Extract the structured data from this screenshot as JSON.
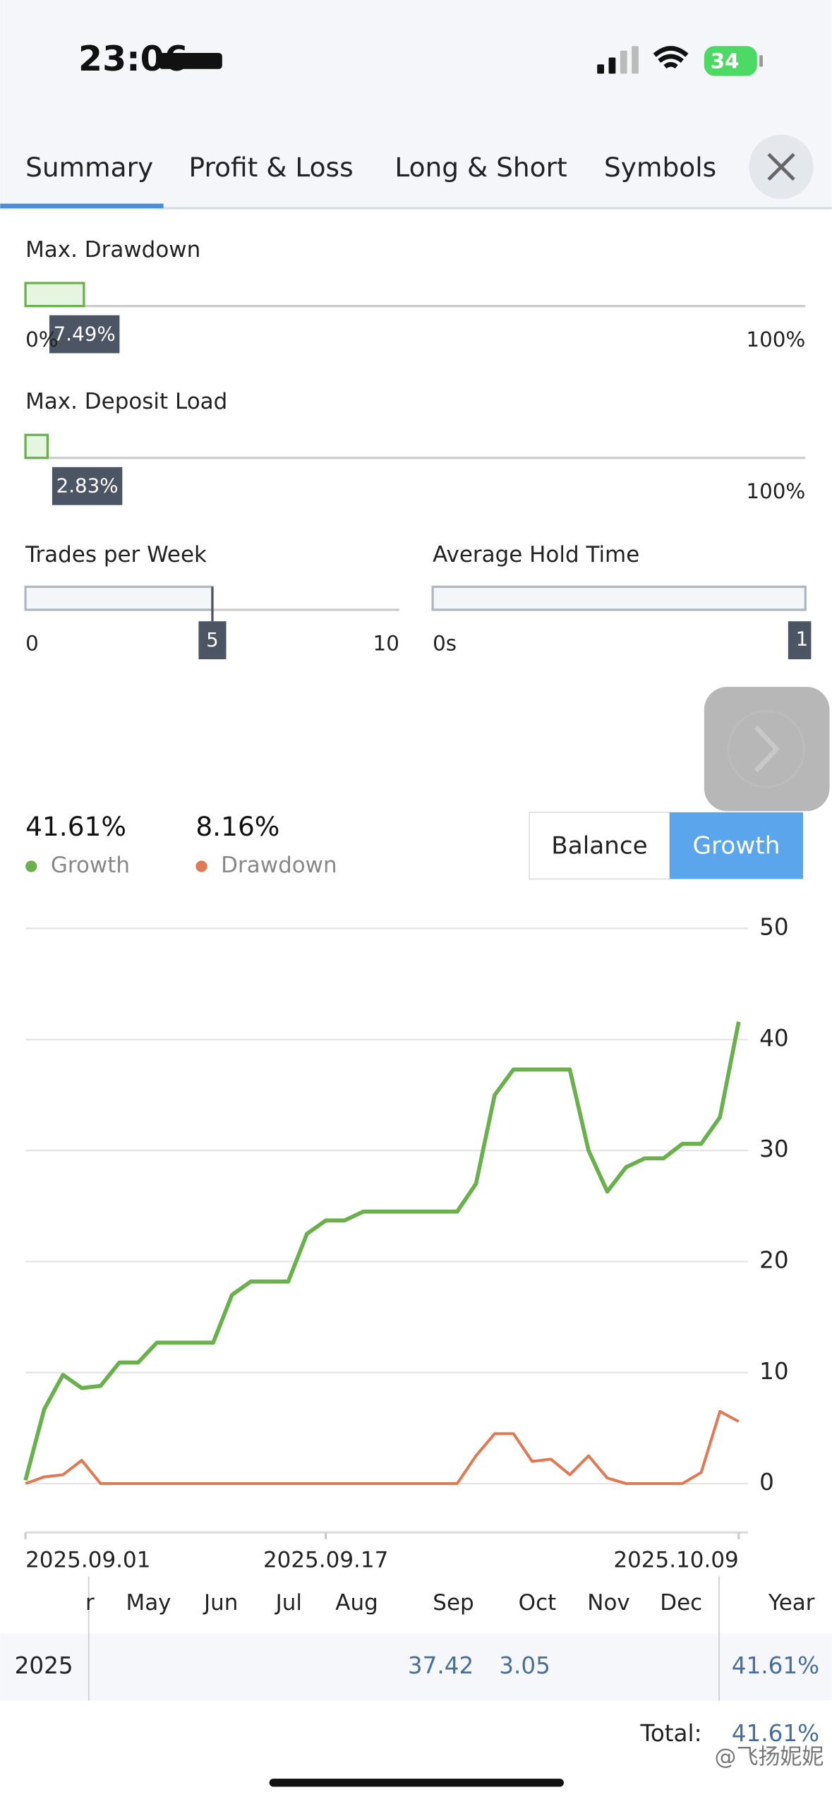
{
  "status_bar": {
    "time": "23:06",
    "battery": "34"
  },
  "tabs": [
    "Summary",
    "Profit & Loss",
    "Long & Short",
    "Symbols"
  ],
  "sliders": [
    {
      "label": "Max. Drawdown",
      "value": 7.49,
      "value_label": "7.49%",
      "min": {
        "value": 0,
        "label": "0%"
      },
      "max": {
        "value": 100,
        "label": "100%"
      }
    },
    {
      "label": "Max. Deposit Load",
      "value": 2.83,
      "value_label": "2.83%",
      "max": {
        "value": 100,
        "label": "100%"
      }
    },
    {
      "label": "Trades per Week",
      "value": 5,
      "min": 0,
      "max": 10
    },
    {
      "label": "Average Hold Time",
      "min_label": "0s",
      "tooltip": "1"
    }
  ],
  "toggle": [
    "Balance",
    "Growth"
  ],
  "chart_data": {
    "type": "line",
    "legend_values": [
      "41.61%",
      "8.16%"
    ],
    "x": [
      0,
      1,
      2,
      3,
      4,
      5,
      6,
      7,
      8,
      9,
      10,
      11,
      12,
      13,
      14,
      15,
      16,
      17,
      18,
      19,
      20,
      21,
      22,
      23,
      24,
      25,
      26,
      27,
      28,
      29,
      30,
      31,
      32,
      33,
      34,
      35,
      36,
      37,
      38
    ],
    "xlim": [
      0,
      38
    ],
    "xticks": [
      {
        "value": 0,
        "label": "2025.09.01"
      },
      {
        "value": 16,
        "label": "2025.09.17"
      },
      {
        "value": 38,
        "label": "2025.10.09"
      }
    ],
    "ylim": [
      -4.4,
      50
    ],
    "yticks": [
      0,
      10,
      20,
      30,
      40,
      50
    ],
    "grid": true,
    "series": [
      {
        "name": "Growth",
        "color": "#6ab04c",
        "values": [
          0.3,
          6.7,
          9.8,
          8.6,
          8.8,
          10.9,
          10.9,
          12.7,
          12.7,
          12.7,
          12.7,
          17,
          18.2,
          18.2,
          18.2,
          22.5,
          23.7,
          23.7,
          24.5,
          24.5,
          24.5,
          24.5,
          24.5,
          24.5,
          27,
          35,
          37.3,
          37.3,
          37.3,
          37.3,
          30,
          26.3,
          28.5,
          29.3,
          29.3,
          30.6,
          30.6,
          33,
          41.6
        ]
      },
      {
        "name": "Drawdown",
        "color": "#e07a55",
        "values": [
          0,
          0.6,
          0.8,
          2.1,
          0,
          0,
          0,
          0,
          0,
          0,
          0,
          0,
          0,
          0,
          0,
          0,
          0,
          0,
          0,
          0,
          0,
          0,
          0,
          0,
          2.5,
          4.5,
          4.5,
          2,
          2.2,
          0.8,
          2.5,
          0.5,
          0,
          0,
          0,
          0,
          1,
          6.5,
          5.6
        ]
      }
    ]
  },
  "table": {
    "header": [
      "r",
      "May",
      "Jun",
      "Jul",
      "Aug",
      "Sep",
      "Oct",
      "Nov",
      "Dec",
      "Year"
    ],
    "row": {
      "label": "2025",
      "values": [
        null,
        null,
        null,
        null,
        null,
        37.42,
        3.05,
        null,
        null
      ],
      "year": "41.61%"
    },
    "total_label": "Total:",
    "total": "41.61%"
  },
  "watermark": "@飞扬妮妮"
}
